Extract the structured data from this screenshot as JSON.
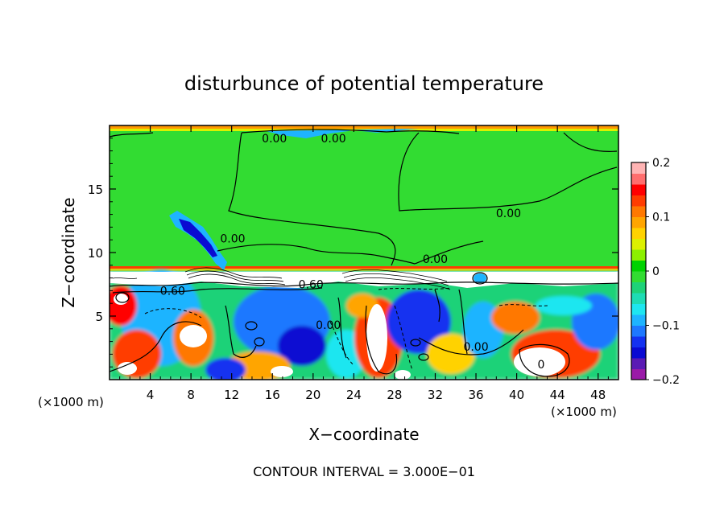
{
  "chart_data": {
    "type": "heatmap",
    "title": "disturbunce of potential temperature",
    "xlabel": "X−coordinate",
    "ylabel": "Z−coordinate",
    "x_unit_left": "(×1000 m)",
    "x_unit_right": "(×1000 m)",
    "footer": "CONTOUR INTERVAL = 3.000E−01",
    "xlim": [
      0,
      50
    ],
    "ylim": [
      0,
      20
    ],
    "x_ticks": [
      "4",
      "8",
      "12",
      "16",
      "20",
      "24",
      "28",
      "32",
      "36",
      "40",
      "44",
      "48"
    ],
    "x_tick_values": [
      4,
      8,
      12,
      16,
      20,
      24,
      28,
      32,
      36,
      40,
      44,
      48
    ],
    "y_ticks": [
      "5",
      "10",
      "15"
    ],
    "y_tick_values": [
      5,
      10,
      15
    ],
    "colorbar": {
      "min": -0.2,
      "max": 0.2,
      "tick_labels": [
        "0.2",
        "0.1",
        "0",
        "−0.1",
        "−0.2"
      ],
      "tick_values": [
        0.2,
        0.1,
        0,
        -0.1,
        -0.2
      ],
      "colors": [
        "#9a1aa8",
        "#5a1ab4",
        "#0a0ad2",
        "#1432f0",
        "#1e78ff",
        "#1eb4ff",
        "#1ee6f0",
        "#1edcb4",
        "#1ed278",
        "#32dc32",
        "#00d200",
        "#8cf000",
        "#dcf000",
        "#ffd200",
        "#ffa500",
        "#ff7800",
        "#ff3c00",
        "#ff0000",
        "#ff6e6e",
        "#ffb4b4"
      ]
    },
    "contour_labels": [
      {
        "text": "0.00",
        "x": 16.2,
        "y": 19.0
      },
      {
        "text": "0.00",
        "x": 22.0,
        "y": 19.0
      },
      {
        "text": "0.00",
        "x": 39.2,
        "y": 13.1
      },
      {
        "text": "0.00",
        "x": 12.1,
        "y": 11.1
      },
      {
        "text": "0.00",
        "x": 32.0,
        "y": 9.5
      },
      {
        "text": "0.60",
        "x": 6.2,
        "y": 7.0
      },
      {
        "text": "0.60",
        "x": 19.8,
        "y": 7.5
      },
      {
        "text": "0.00",
        "x": 21.5,
        "y": 4.3
      },
      {
        "text": "0.00",
        "x": 36.0,
        "y": 2.6
      },
      {
        "text": "0",
        "x": 42.4,
        "y": 1.2
      }
    ]
  }
}
